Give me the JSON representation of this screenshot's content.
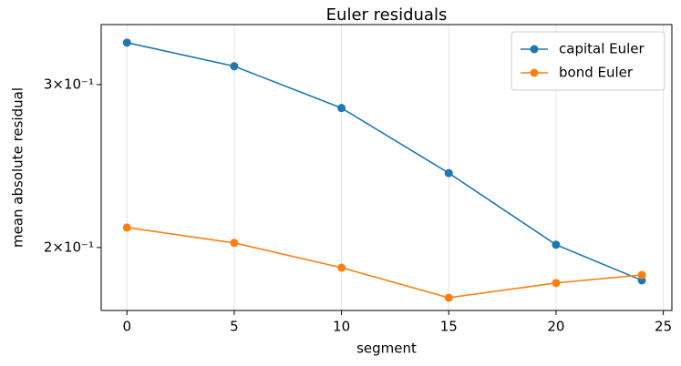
{
  "chart_data": {
    "type": "line",
    "title": "Euler residuals",
    "x_label": "segment",
    "y_label": "mean absolute residual",
    "x": [
      0,
      5,
      10,
      15,
      20,
      24
    ],
    "series": [
      {
        "name": "capital Euler",
        "color": "#1f77b4",
        "values": [
          0.333,
          0.314,
          0.283,
          0.2407,
          0.2014,
          0.1843
        ]
      },
      {
        "name": "bond Euler",
        "color": "#ff7f0e",
        "values": [
          0.2102,
          0.2023,
          0.1902,
          0.1765,
          0.1831,
          0.1868
        ]
      }
    ],
    "xlim": [
      -1.2,
      25.4
    ],
    "xticks": [
      0,
      5,
      10,
      15,
      20,
      25
    ],
    "ylim": [
      0.171,
      0.3483
    ],
    "y_scale": "log",
    "yticks": [
      {
        "value": 0.2,
        "label": "2×10⁻¹"
      },
      {
        "value": 0.3,
        "label": "3×10⁻¹"
      }
    ],
    "grid": "x",
    "legend": "upper right"
  }
}
